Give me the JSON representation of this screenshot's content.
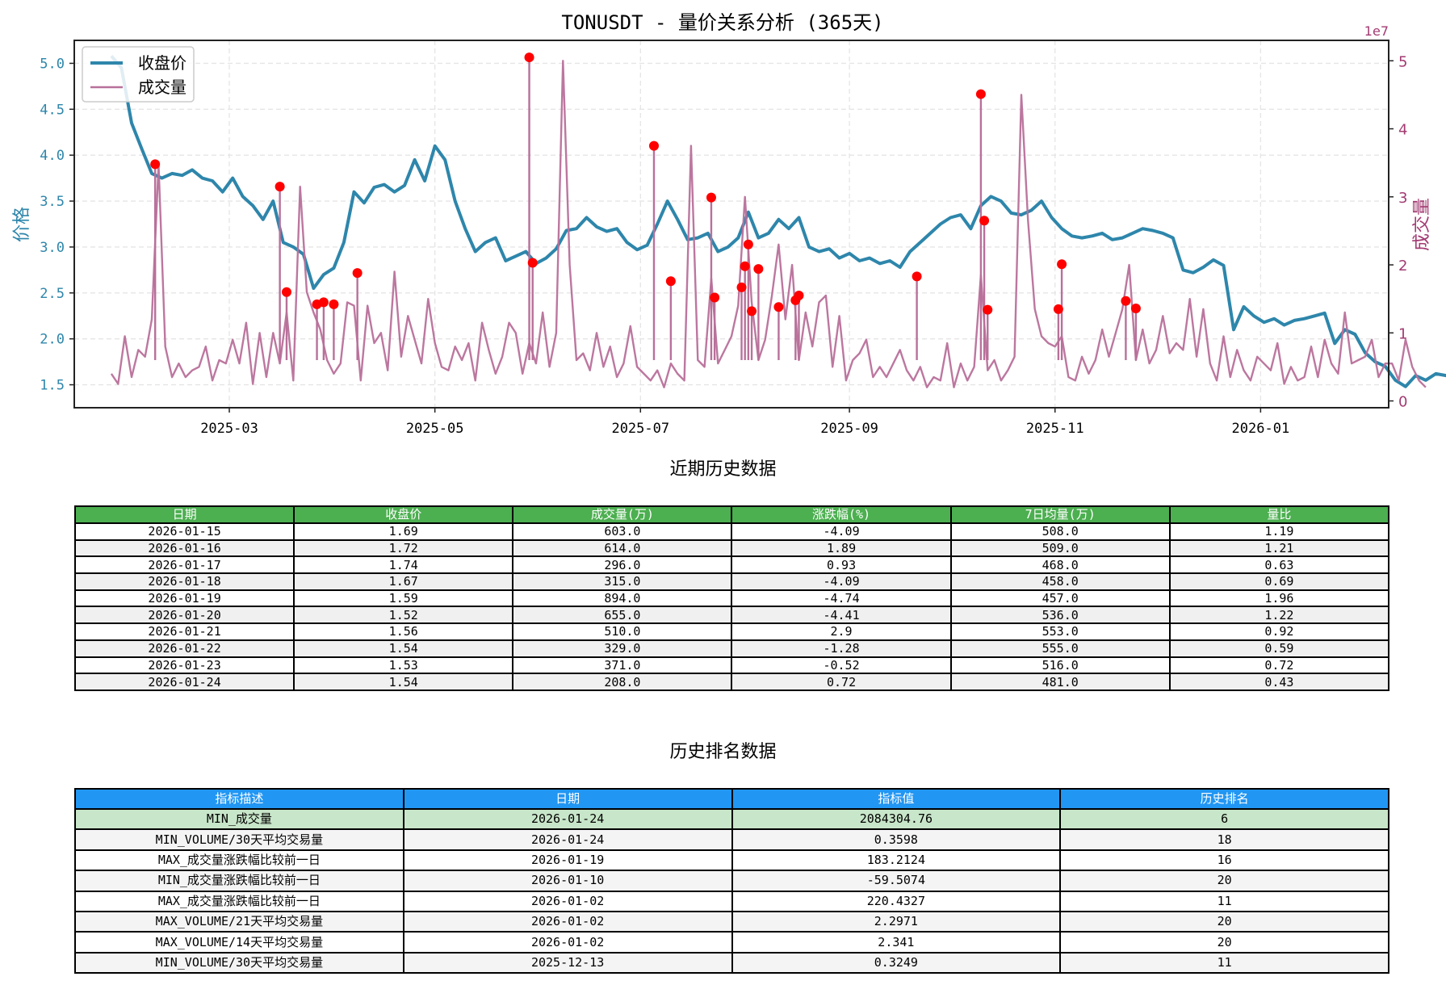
{
  "chart_data": {
    "type": "line",
    "title": "TONUSDT - 量价关系分析 (365天)",
    "xlabel": "",
    "ylabel_left": "价格",
    "ylabel_right": "成交量",
    "right_axis_offset_label": "1e7",
    "x_tick_labels": [
      "2025-03",
      "2025-05",
      "2025-07",
      "2025-09",
      "2025-11",
      "2026-01"
    ],
    "y_left_ticks": [
      "1.5",
      "2.0",
      "2.5",
      "3.0",
      "3.5",
      "4.0",
      "4.5",
      "5.0"
    ],
    "y_right_ticks": [
      "0",
      "1",
      "2",
      "3",
      "4",
      "5"
    ],
    "ylim_left": [
      1.25,
      5.25
    ],
    "ylim_right": [
      -0.1,
      5.3
    ],
    "x_range": [
      "2025-01-14",
      "2026-02-08"
    ],
    "grid": true,
    "legend": {
      "position": "upper left",
      "entries": [
        "收盘价",
        "成交量"
      ]
    },
    "colors": {
      "price": "#2e86ab",
      "volume": "#b8709a",
      "marker": "#ff0000",
      "right_axis": "#a23b72"
    },
    "series": [
      {
        "name": "收盘价",
        "x_start": "2025-01-25",
        "step_days": 3,
        "values": [
          5.08,
          4.95,
          4.35,
          4.07,
          3.8,
          3.75,
          3.8,
          3.78,
          3.84,
          3.75,
          3.72,
          3.6,
          3.75,
          3.55,
          3.45,
          3.3,
          3.5,
          3.05,
          3.0,
          2.92,
          2.55,
          2.7,
          2.77,
          3.05,
          3.6,
          3.48,
          3.65,
          3.68,
          3.6,
          3.67,
          3.95,
          3.72,
          4.1,
          3.95,
          3.5,
          3.2,
          2.95,
          3.05,
          3.1,
          2.85,
          2.9,
          2.95,
          2.82,
          2.88,
          2.98,
          3.18,
          3.2,
          3.32,
          3.22,
          3.17,
          3.2,
          3.05,
          2.97,
          3.02,
          3.25,
          3.5,
          3.3,
          3.08,
          3.1,
          3.15,
          2.95,
          3.0,
          3.1,
          3.38,
          3.1,
          3.15,
          3.3,
          3.2,
          3.32,
          3.0,
          2.95,
          2.98,
          2.88,
          2.93,
          2.85,
          2.88,
          2.82,
          2.85,
          2.78,
          2.95,
          3.05,
          3.15,
          3.25,
          3.32,
          3.35,
          3.2,
          3.45,
          3.55,
          3.5,
          3.37,
          3.35,
          3.4,
          3.5,
          3.32,
          3.2,
          3.12,
          3.1,
          3.12,
          3.15,
          3.08,
          3.1,
          3.15,
          3.2,
          3.18,
          3.15,
          3.1,
          2.75,
          2.72,
          2.78,
          2.86,
          2.8,
          2.1,
          2.35,
          2.25,
          2.18,
          2.22,
          2.15,
          2.2,
          2.22,
          2.25,
          2.28,
          1.95,
          2.1,
          2.05,
          1.85,
          1.75,
          1.7,
          1.55,
          1.48,
          1.6,
          1.55,
          1.62,
          1.6,
          1.58,
          1.62,
          1.55,
          1.48,
          1.47,
          1.5,
          1.6,
          1.65,
          1.7,
          1.85,
          1.88,
          1.8,
          1.75,
          1.7,
          1.76,
          1.55,
          1.53,
          1.54
        ]
      },
      {
        "name": "成交量",
        "unit": "1e7",
        "x_start": "2025-01-25",
        "step_days": 2,
        "values": [
          0.4,
          0.25,
          0.95,
          0.35,
          0.75,
          0.65,
          1.2,
          3.48,
          0.8,
          0.35,
          0.55,
          0.35,
          0.45,
          0.5,
          0.8,
          0.3,
          0.6,
          0.55,
          0.9,
          0.55,
          1.15,
          0.25,
          1.0,
          0.35,
          1.0,
          0.55,
          1.3,
          0.3,
          3.15,
          1.6,
          1.3,
          1.05,
          0.6,
          0.4,
          0.55,
          1.45,
          1.4,
          0.3,
          1.4,
          0.85,
          1.0,
          0.45,
          1.9,
          0.65,
          1.25,
          0.9,
          0.55,
          1.5,
          0.85,
          0.5,
          0.45,
          0.8,
          0.6,
          0.85,
          0.3,
          1.15,
          0.75,
          0.4,
          0.65,
          1.15,
          1.0,
          0.4,
          0.85,
          0.55,
          1.3,
          0.5,
          1.0,
          5.0,
          2.0,
          0.6,
          0.7,
          0.45,
          1.0,
          0.5,
          0.8,
          0.35,
          0.55,
          1.1,
          0.5,
          0.4,
          0.3,
          0.45,
          0.2,
          0.55,
          0.4,
          0.3,
          3.75,
          0.6,
          0.5,
          1.8,
          0.55,
          0.75,
          0.95,
          1.4,
          3.0,
          1.45,
          0.6,
          0.9,
          1.55,
          2.3,
          1.2,
          2.0,
          0.6,
          1.3,
          0.8,
          1.45,
          1.55,
          0.5,
          1.25,
          0.3,
          0.6,
          0.7,
          0.9,
          0.35,
          0.5,
          0.35,
          0.55,
          0.75,
          0.45,
          0.3,
          0.5,
          0.2,
          0.35,
          0.3,
          0.85,
          0.2,
          0.55,
          0.3,
          0.5,
          1.85,
          0.45,
          0.6,
          0.3,
          0.45,
          0.65,
          4.5,
          2.65,
          1.35,
          0.95,
          0.85,
          0.8,
          0.95,
          0.35,
          0.3,
          0.65,
          0.4,
          0.6,
          1.05,
          0.65,
          1.0,
          1.35,
          2.0,
          0.6,
          1.05,
          0.55,
          0.75,
          1.25,
          0.7,
          0.85,
          0.75,
          1.5,
          0.65,
          1.35,
          0.55,
          0.3,
          0.95,
          0.35,
          0.75,
          0.45,
          0.3,
          0.65,
          0.55,
          0.45,
          0.85,
          0.25,
          0.5,
          0.3,
          0.35,
          0.8,
          0.35,
          0.9,
          0.55,
          0.4,
          1.3,
          0.55,
          0.6,
          0.65,
          0.9,
          0.35,
          0.55,
          0.55,
          0.3,
          0.9,
          0.5,
          0.3,
          0.2
        ]
      }
    ],
    "highlight_markers": [
      {
        "date": "2025-02-07",
        "volume": 3.48
      },
      {
        "date": "2025-03-16",
        "volume": 3.15
      },
      {
        "date": "2025-03-18",
        "volume": 1.6
      },
      {
        "date": "2025-03-27",
        "volume": 1.42
      },
      {
        "date": "2025-03-29",
        "volume": 1.45
      },
      {
        "date": "2025-04-01",
        "volume": 1.42
      },
      {
        "date": "2025-04-08",
        "volume": 1.88
      },
      {
        "date": "2025-05-29",
        "volume": 5.05
      },
      {
        "date": "2025-05-30",
        "volume": 2.03
      },
      {
        "date": "2025-07-05",
        "volume": 3.75
      },
      {
        "date": "2025-07-10",
        "volume": 1.76
      },
      {
        "date": "2025-07-22",
        "volume": 2.99
      },
      {
        "date": "2025-07-23",
        "volume": 1.52
      },
      {
        "date": "2025-07-31",
        "volume": 1.67
      },
      {
        "date": "2025-08-01",
        "volume": 1.98
      },
      {
        "date": "2025-08-02",
        "volume": 2.3
      },
      {
        "date": "2025-08-03",
        "volume": 1.32
      },
      {
        "date": "2025-08-05",
        "volume": 1.94
      },
      {
        "date": "2025-08-11",
        "volume": 1.38
      },
      {
        "date": "2025-08-16",
        "volume": 1.48
      },
      {
        "date": "2025-08-17",
        "volume": 1.55
      },
      {
        "date": "2025-09-21",
        "volume": 1.83
      },
      {
        "date": "2025-10-10",
        "volume": 4.51
      },
      {
        "date": "2025-10-11",
        "volume": 2.65
      },
      {
        "date": "2025-10-12",
        "volume": 1.34
      },
      {
        "date": "2025-11-02",
        "volume": 1.35
      },
      {
        "date": "2025-11-03",
        "volume": 2.01
      },
      {
        "date": "2025-11-22",
        "volume": 1.47
      },
      {
        "date": "2025-11-25",
        "volume": 1.36
      }
    ]
  },
  "chart": {
    "title": "TONUSDT - 量价关系分析 (365天)",
    "ylabel_left": "价格",
    "ylabel_right": "成交量",
    "offset_label": "1e7",
    "legend": [
      {
        "label": "收盘价",
        "color": "#2e86ab"
      },
      {
        "label": "成交量",
        "color": "#b8709a"
      }
    ]
  },
  "recent_section": {
    "title": "近期历史数据",
    "header_color": "#4caf50",
    "columns": [
      "日期",
      "收盘价",
      "成交量(万)",
      "涨跌幅(%)",
      "7日均量(万)",
      "量比"
    ],
    "rows": [
      [
        "2026-01-15",
        "1.69",
        "603.0",
        "-4.09",
        "508.0",
        "1.19"
      ],
      [
        "2026-01-16",
        "1.72",
        "614.0",
        "1.89",
        "509.0",
        "1.21"
      ],
      [
        "2026-01-17",
        "1.74",
        "296.0",
        "0.93",
        "468.0",
        "0.63"
      ],
      [
        "2026-01-18",
        "1.67",
        "315.0",
        "-4.09",
        "458.0",
        "0.69"
      ],
      [
        "2026-01-19",
        "1.59",
        "894.0",
        "-4.74",
        "457.0",
        "1.96"
      ],
      [
        "2026-01-20",
        "1.52",
        "655.0",
        "-4.41",
        "536.0",
        "1.22"
      ],
      [
        "2026-01-21",
        "1.56",
        "510.0",
        "2.9",
        "553.0",
        "0.92"
      ],
      [
        "2026-01-22",
        "1.54",
        "329.0",
        "-1.28",
        "555.0",
        "0.59"
      ],
      [
        "2026-01-23",
        "1.53",
        "371.0",
        "-0.52",
        "516.0",
        "0.72"
      ],
      [
        "2026-01-24",
        "1.54",
        "208.0",
        "0.72",
        "481.0",
        "0.43"
      ]
    ]
  },
  "rank_section": {
    "title": "历史排名数据",
    "header_color": "#2196f3",
    "highlight_color": "#c8e6c9",
    "columns": [
      "指标描述",
      "日期",
      "指标值",
      "历史排名"
    ],
    "rows": [
      [
        "MIN_成交量",
        "2026-01-24",
        "2084304.76",
        "6"
      ],
      [
        "MIN_VOLUME/30天平均交易量",
        "2026-01-24",
        "0.3598",
        "18"
      ],
      [
        "MAX_成交量涨跌幅比较前一日",
        "2026-01-19",
        "183.2124",
        "16"
      ],
      [
        "MIN_成交量涨跌幅比较前一日",
        "2026-01-10",
        "-59.5074",
        "20"
      ],
      [
        "MAX_成交量涨跌幅比较前一日",
        "2026-01-02",
        "220.4327",
        "11"
      ],
      [
        "MAX_VOLUME/21天平均交易量",
        "2026-01-02",
        "2.2971",
        "20"
      ],
      [
        "MAX_VOLUME/14天平均交易量",
        "2026-01-02",
        "2.341",
        "20"
      ],
      [
        "MIN_VOLUME/30天平均交易量",
        "2025-12-13",
        "0.3249",
        "11"
      ]
    ]
  }
}
